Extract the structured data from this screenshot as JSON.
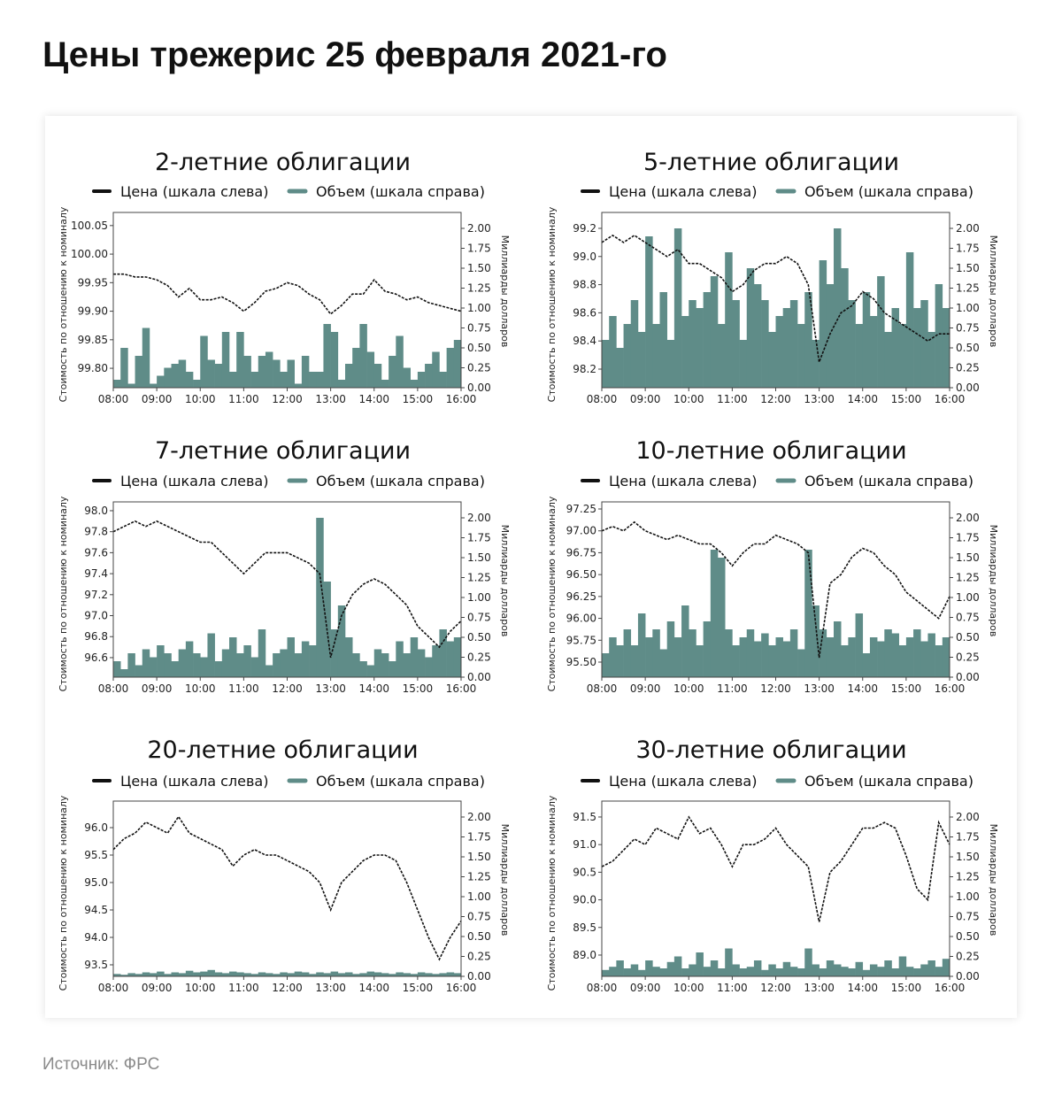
{
  "title": "Цены трежерис 25 февраля 2021-го",
  "source": "Источник: ФРС",
  "colors": {
    "price": "#111111",
    "volume": "#5f8c88",
    "axis": "#444444"
  },
  "chart_data": [
    {
      "type": "bar+line",
      "title": "2-летние облигации",
      "legend": [
        "Цена (шкала слева)",
        "Объем (шкала справа)"
      ],
      "ylabel": "Стоимость по отношению к номиналу",
      "y2label": "Миллиарды долларов",
      "xticks": [
        "08:00",
        "09:00",
        "10:00",
        "11:00",
        "12:00",
        "13:00",
        "14:00",
        "15:00",
        "16:00"
      ],
      "ylim": [
        99.766,
        100.073
      ],
      "yticks": [
        99.8,
        99.85,
        99.9,
        99.95,
        100.0,
        100.05
      ],
      "ydecimals": 2,
      "y2lim": [
        0,
        2.2
      ],
      "price": [
        99.965,
        99.965,
        99.96,
        99.96,
        99.955,
        99.945,
        99.925,
        99.94,
        99.92,
        99.92,
        99.925,
        99.915,
        99.9,
        99.915,
        99.935,
        99.94,
        99.95,
        99.945,
        99.93,
        99.92,
        99.895,
        99.91,
        99.93,
        99.93,
        99.955,
        99.935,
        99.93,
        99.92,
        99.925,
        99.915,
        99.91,
        99.905,
        99.9
      ],
      "volume": [
        0.1,
        0.5,
        0.05,
        0.4,
        0.75,
        0.05,
        0.15,
        0.25,
        0.3,
        0.35,
        0.2,
        0.1,
        0.65,
        0.35,
        0.3,
        0.7,
        0.2,
        0.7,
        0.4,
        0.2,
        0.4,
        0.45,
        0.35,
        0.2,
        0.35,
        0.05,
        0.4,
        0.2,
        0.2,
        0.8,
        0.7,
        0.1,
        0.3,
        0.5,
        0.8,
        0.45,
        0.3,
        0.1,
        0.4,
        0.65,
        0.25,
        0.1,
        0.2,
        0.3,
        0.45,
        0.2,
        0.5,
        0.6
      ]
    },
    {
      "type": "bar+line",
      "title": "5-летние облигации",
      "legend": [
        "Цена (шкала слева)",
        "Объем (шкала справа)"
      ],
      "ylabel": "Стоимость по отношению к номиналу",
      "y2label": "Миллиарды долларов",
      "xticks": [
        "08:00",
        "09:00",
        "10:00",
        "11:00",
        "12:00",
        "13:00",
        "14:00",
        "15:00",
        "16:00"
      ],
      "ylim": [
        98.068,
        99.313
      ],
      "yticks": [
        98.2,
        98.4,
        98.6,
        98.8,
        99.0,
        99.2
      ],
      "ydecimals": 1,
      "y2lim": [
        0,
        2.2
      ],
      "price": [
        99.1,
        99.15,
        99.1,
        99.15,
        99.1,
        99.05,
        99.0,
        99.05,
        98.95,
        98.95,
        98.9,
        98.85,
        98.75,
        98.8,
        98.9,
        98.95,
        98.95,
        99.0,
        98.95,
        98.8,
        98.25,
        98.45,
        98.6,
        98.65,
        98.75,
        98.7,
        98.6,
        98.55,
        98.5,
        98.45,
        98.4,
        98.45,
        98.45
      ],
      "volume": [
        0.6,
        0.9,
        0.5,
        0.8,
        1.1,
        0.7,
        1.9,
        0.8,
        1.2,
        0.6,
        2.0,
        0.9,
        1.1,
        1.0,
        1.2,
        1.4,
        0.8,
        1.7,
        1.1,
        0.6,
        1.5,
        1.3,
        1.1,
        0.7,
        0.9,
        1.0,
        1.1,
        0.8,
        1.2,
        0.6,
        1.6,
        1.3,
        2.0,
        1.5,
        1.1,
        0.8,
        1.2,
        0.9,
        1.4,
        0.7,
        1.0,
        0.8,
        1.7,
        1.0,
        1.1,
        0.7,
        1.3,
        1.0
      ]
    },
    {
      "type": "bar+line",
      "title": "7-летние облигации",
      "legend": [
        "Цена (шкала слева)",
        "Объем (шкала справа)"
      ],
      "ylabel": "Стоимость по отношению к номиналу",
      "y2label": "Миллиарды долларов",
      "xticks": [
        "08:00",
        "09:00",
        "10:00",
        "11:00",
        "12:00",
        "13:00",
        "14:00",
        "15:00",
        "16:00"
      ],
      "ylim": [
        96.414,
        98.084
      ],
      "yticks": [
        96.6,
        96.8,
        97.0,
        97.2,
        97.4,
        97.6,
        97.8,
        98.0
      ],
      "ydecimals": 1,
      "y2lim": [
        0,
        2.2
      ],
      "price": [
        97.8,
        97.85,
        97.9,
        97.85,
        97.9,
        97.85,
        97.8,
        97.75,
        97.7,
        97.7,
        97.6,
        97.5,
        97.4,
        97.5,
        97.6,
        97.6,
        97.6,
        97.55,
        97.5,
        97.4,
        96.6,
        97.0,
        97.2,
        97.3,
        97.35,
        97.3,
        97.2,
        97.1,
        96.9,
        96.8,
        96.7,
        96.85,
        96.95
      ],
      "volume": [
        0.2,
        0.1,
        0.3,
        0.15,
        0.35,
        0.25,
        0.4,
        0.3,
        0.2,
        0.35,
        0.45,
        0.3,
        0.25,
        0.55,
        0.2,
        0.35,
        0.5,
        0.3,
        0.4,
        0.25,
        0.6,
        0.15,
        0.3,
        0.35,
        0.5,
        0.3,
        0.45,
        0.4,
        2.0,
        1.2,
        0.6,
        0.9,
        0.5,
        0.3,
        0.2,
        0.15,
        0.35,
        0.3,
        0.2,
        0.45,
        0.3,
        0.5,
        0.35,
        0.25,
        0.4,
        0.6,
        0.45,
        0.5
      ]
    },
    {
      "type": "bar+line",
      "title": "10-летние облигации",
      "legend": [
        "Цена (шкала слева)",
        "Объем (шкала справа)"
      ],
      "ylabel": "Стоимость по отношению к номиналу",
      "y2label": "Миллиарды долларов",
      "xticks": [
        "08:00",
        "09:00",
        "10:00",
        "11:00",
        "12:00",
        "13:00",
        "14:00",
        "15:00",
        "16:00"
      ],
      "ylim": [
        95.328,
        97.331
      ],
      "yticks": [
        95.5,
        95.75,
        96.0,
        96.25,
        96.5,
        96.75,
        97.0,
        97.25
      ],
      "ydecimals": 2,
      "y2lim": [
        0,
        2.2
      ],
      "price": [
        97.0,
        97.05,
        97.0,
        97.1,
        97.0,
        96.95,
        96.9,
        96.95,
        96.9,
        96.85,
        96.85,
        96.75,
        96.6,
        96.75,
        96.85,
        96.85,
        96.95,
        96.9,
        96.85,
        96.75,
        95.55,
        96.4,
        96.5,
        96.7,
        96.8,
        96.75,
        96.6,
        96.5,
        96.3,
        96.2,
        96.1,
        96.0,
        96.25
      ],
      "volume": [
        0.3,
        0.5,
        0.4,
        0.6,
        0.4,
        0.8,
        0.5,
        0.6,
        0.35,
        0.7,
        0.5,
        0.9,
        0.6,
        0.4,
        0.7,
        1.6,
        1.5,
        0.6,
        0.4,
        0.5,
        0.6,
        0.45,
        0.55,
        0.4,
        0.5,
        0.45,
        0.6,
        0.35,
        1.6,
        0.9,
        0.6,
        0.5,
        0.7,
        0.4,
        0.5,
        0.8,
        0.3,
        0.5,
        0.45,
        0.6,
        0.55,
        0.4,
        0.5,
        0.6,
        0.45,
        0.55,
        0.4,
        0.5
      ]
    },
    {
      "type": "bar+line",
      "title": "20-летние облигации",
      "legend": [
        "Цена (шкала слева)",
        "Объем (шкала справа)"
      ],
      "ylabel": "Стоимость по отношению к номиналу",
      "y2label": "Миллиарды долларов",
      "xticks": [
        "08:00",
        "09:00",
        "10:00",
        "11:00",
        "12:00",
        "13:00",
        "14:00",
        "15:00",
        "16:00"
      ],
      "ylim": [
        93.29,
        96.484
      ],
      "yticks": [
        93.5,
        94.0,
        94.5,
        95.0,
        95.5,
        96.0
      ],
      "ydecimals": 1,
      "y2lim": [
        0,
        2.2
      ],
      "price": [
        95.6,
        95.8,
        95.9,
        96.1,
        96.0,
        95.9,
        96.2,
        95.9,
        95.8,
        95.7,
        95.6,
        95.3,
        95.5,
        95.6,
        95.5,
        95.5,
        95.4,
        95.3,
        95.2,
        95.0,
        94.5,
        95.0,
        95.2,
        95.4,
        95.5,
        95.5,
        95.4,
        95.0,
        94.5,
        94.0,
        93.6,
        94.0,
        94.3
      ],
      "volume": [
        0.03,
        0.02,
        0.04,
        0.03,
        0.05,
        0.04,
        0.06,
        0.03,
        0.05,
        0.04,
        0.07,
        0.05,
        0.06,
        0.08,
        0.05,
        0.04,
        0.06,
        0.05,
        0.04,
        0.03,
        0.05,
        0.04,
        0.03,
        0.05,
        0.04,
        0.06,
        0.05,
        0.03,
        0.05,
        0.04,
        0.06,
        0.04,
        0.05,
        0.03,
        0.04,
        0.06,
        0.05,
        0.04,
        0.03,
        0.05,
        0.04,
        0.03,
        0.05,
        0.04,
        0.03,
        0.04,
        0.05,
        0.04
      ]
    },
    {
      "type": "bar+line",
      "title": "30-летние облигации",
      "legend": [
        "Цена (шкала слева)",
        "Объем (шкала справа)"
      ],
      "ylabel": "Стоимость по отношению к номиналу",
      "y2label": "Миллиарды долларов",
      "xticks": [
        "08:00",
        "09:00",
        "10:00",
        "11:00",
        "12:00",
        "13:00",
        "14:00",
        "15:00",
        "16:00"
      ],
      "ylim": [
        88.615,
        91.788
      ],
      "yticks": [
        89.0,
        89.5,
        90.0,
        90.5,
        91.0,
        91.5
      ],
      "ydecimals": 1,
      "y2lim": [
        0,
        2.2
      ],
      "price": [
        90.6,
        90.7,
        90.9,
        91.1,
        91.0,
        91.3,
        91.2,
        91.1,
        91.5,
        91.2,
        91.3,
        91.0,
        90.6,
        91.0,
        91.0,
        91.1,
        91.3,
        91.0,
        90.8,
        90.6,
        89.6,
        90.5,
        90.7,
        91.0,
        91.3,
        91.3,
        91.4,
        91.3,
        90.8,
        90.2,
        90.0,
        91.4,
        91.0
      ],
      "volume": [
        0.08,
        0.12,
        0.2,
        0.1,
        0.15,
        0.08,
        0.2,
        0.12,
        0.1,
        0.18,
        0.25,
        0.1,
        0.15,
        0.3,
        0.12,
        0.2,
        0.1,
        0.35,
        0.15,
        0.1,
        0.12,
        0.2,
        0.08,
        0.15,
        0.1,
        0.18,
        0.12,
        0.1,
        0.35,
        0.15,
        0.1,
        0.2,
        0.15,
        0.12,
        0.1,
        0.18,
        0.08,
        0.15,
        0.12,
        0.2,
        0.1,
        0.25,
        0.12,
        0.1,
        0.15,
        0.2,
        0.12,
        0.22
      ]
    }
  ]
}
